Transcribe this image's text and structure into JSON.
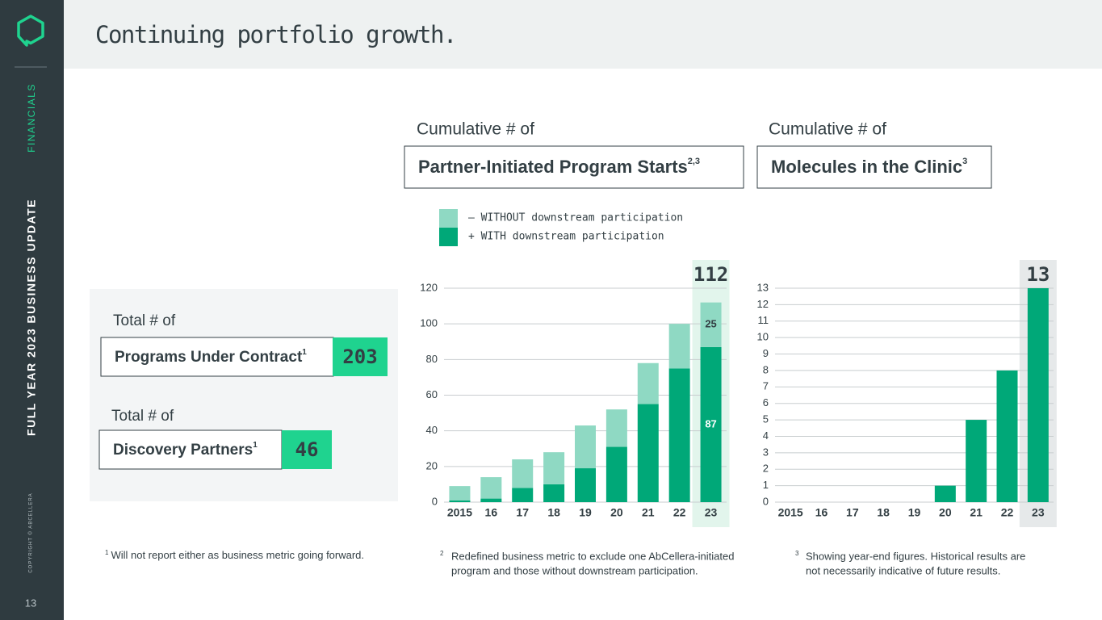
{
  "sidebar": {
    "section": "FINANCIALS",
    "deck": "FULL YEAR 2023 BUSINESS UPDATE",
    "copyright": "COPYRIGHT © ABCELLERA",
    "page": "13"
  },
  "header": {
    "title": "Continuing portfolio growth."
  },
  "metrics": [
    {
      "kicker": "Total # of",
      "label": "Programs Under Contract",
      "note": "1",
      "value": 203
    },
    {
      "kicker": "Total # of",
      "label": "Discovery Partners",
      "note": "1",
      "value": 46
    }
  ],
  "chart_data": [
    {
      "type": "stacked_bar",
      "kicker": "Cumulative # of",
      "title": "Partner-Initiated Program Starts",
      "note": "2,3",
      "categories": [
        "2015",
        "16",
        "17",
        "18",
        "19",
        "20",
        "21",
        "22",
        "23"
      ],
      "series": [
        {
          "name": "+ WITH downstream participation",
          "color": "#00a878",
          "values": [
            1,
            2,
            8,
            10,
            19,
            31,
            55,
            75,
            87
          ]
        },
        {
          "name": "– WITHOUT downstream participation",
          "color": "#8fd9c3",
          "values": [
            8,
            12,
            16,
            18,
            24,
            21,
            23,
            25,
            25
          ]
        }
      ],
      "ylim": [
        0,
        120
      ],
      "yticks": [
        0,
        20,
        40,
        60,
        80,
        100,
        120
      ],
      "grid": true,
      "highlight": "23",
      "highlight_color": "#e2f5ec",
      "highlight_total": 112
    },
    {
      "type": "bar",
      "kicker": "Cumulative # of",
      "title": "Molecules in the Clinic",
      "note": "3",
      "categories": [
        "2015",
        "16",
        "17",
        "18",
        "19",
        "20",
        "21",
        "22",
        "23"
      ],
      "values": [
        0,
        0,
        0,
        0,
        0,
        1,
        5,
        8,
        13
      ],
      "color": "#00a878",
      "ylim": [
        0,
        13
      ],
      "yticks": [
        0,
        1,
        2,
        3,
        4,
        5,
        6,
        7,
        8,
        9,
        10,
        11,
        12,
        13
      ],
      "grid": true,
      "highlight": "23",
      "highlight_color": "#e6e9ea",
      "highlight_total": 13
    }
  ],
  "footnotes": [
    {
      "mark": "1",
      "lines": [
        "Will not report either as business metric going forward."
      ]
    },
    {
      "mark": "2",
      "lines": [
        "Redefined business metric to exclude one AbCellera-initiated",
        "program and those without downstream participation."
      ]
    },
    {
      "mark": "3",
      "lines": [
        "Showing year-end figures. Historical results are",
        "not necessarily indicative of future results."
      ]
    }
  ]
}
